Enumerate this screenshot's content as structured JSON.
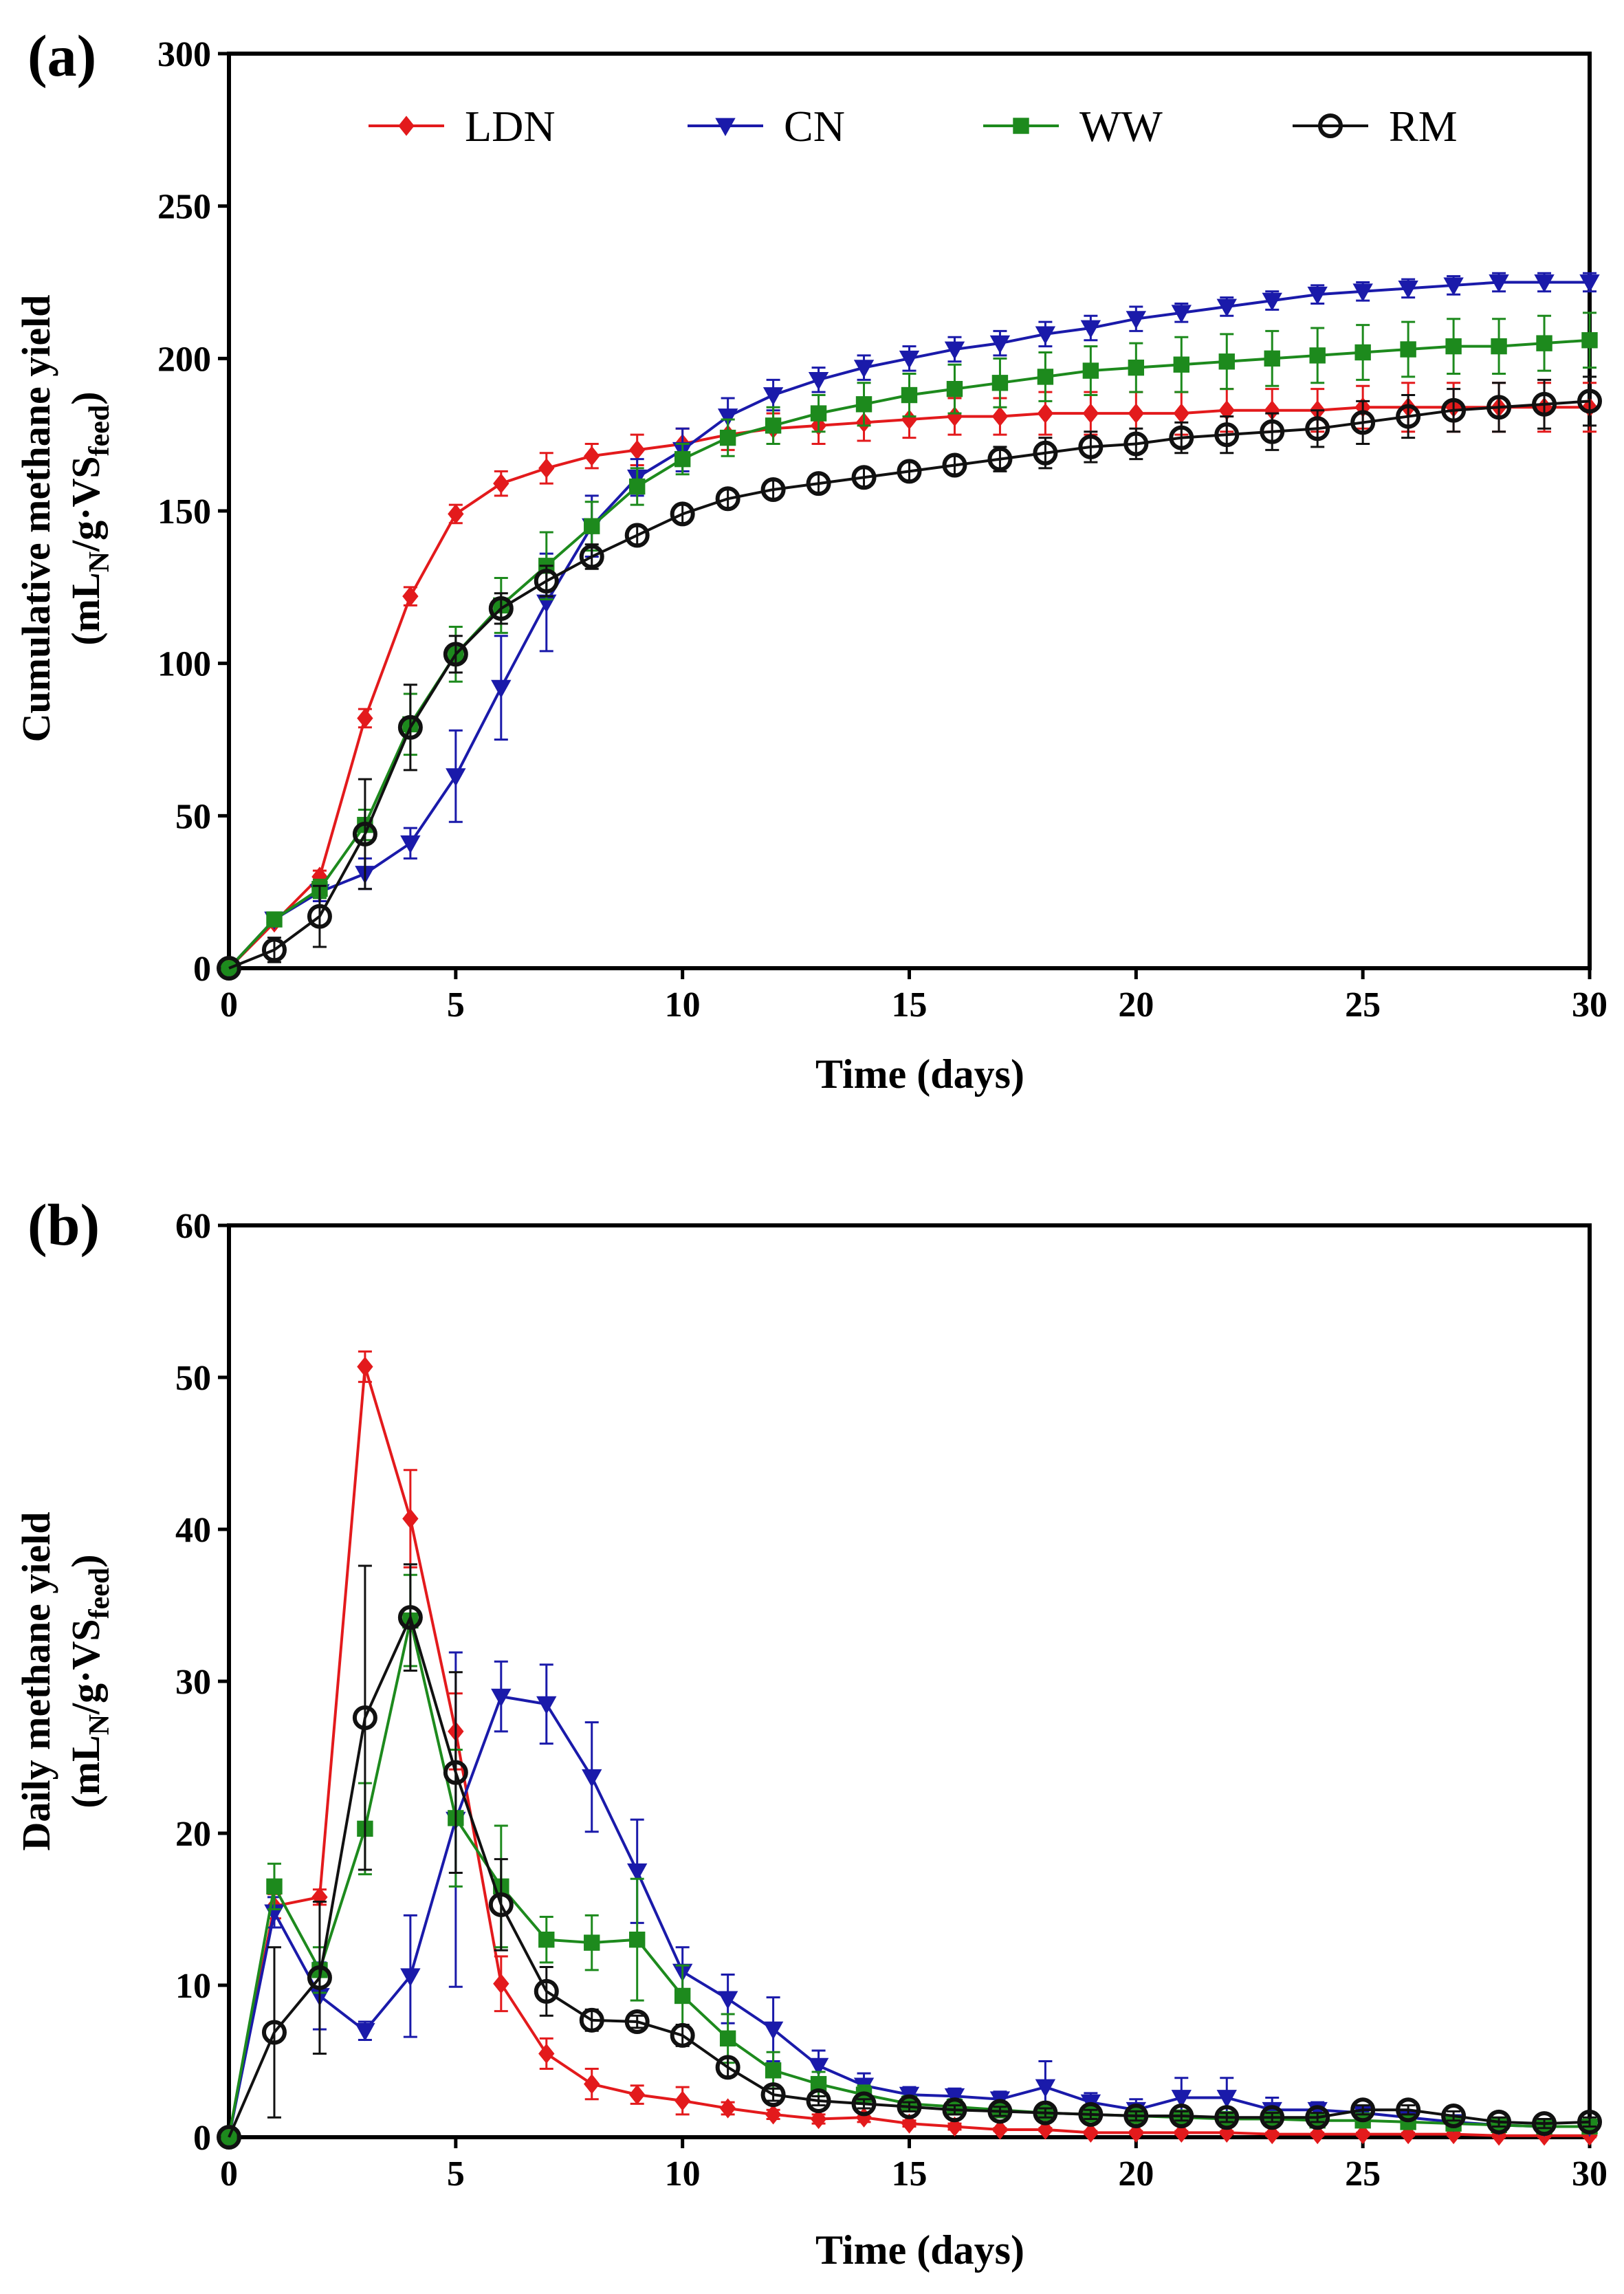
{
  "colors": {
    "LDN": "#e31a1c",
    "CN": "#1a1aaa",
    "WW": "#1d8a1d",
    "RM": "#111111"
  },
  "chart_data": [
    {
      "type": "line",
      "panel_label": "(a)",
      "xlabel": "Time (days)",
      "ylabel_line1": "Cumulative methane yield",
      "ylabel_line2_prefix": "(mL",
      "ylabel_sub1": "N",
      "ylabel_mid": "/g·VS",
      "ylabel_sub2": "feed",
      "ylabel_suffix": ")",
      "xlim": [
        0,
        30
      ],
      "ylim": [
        0,
        300
      ],
      "xticks": [
        "0",
        "5",
        "10",
        "15",
        "20",
        "25",
        "30"
      ],
      "yticks": [
        "0",
        "50",
        "100",
        "150",
        "200",
        "250",
        "300"
      ],
      "legend_position": "top",
      "x": [
        0,
        1,
        2,
        3,
        4,
        5,
        6,
        7,
        8,
        9,
        10,
        11,
        12,
        13,
        14,
        15,
        16,
        17,
        18,
        19,
        20,
        21,
        22,
        23,
        24,
        25,
        26,
        27,
        28,
        29,
        30
      ],
      "series": [
        {
          "name": "LDN",
          "marker": "diamond",
          "values": [
            0,
            15,
            30,
            82,
            122,
            149,
            159,
            164,
            168,
            170,
            172,
            175,
            177,
            178,
            179,
            180,
            181,
            181,
            182,
            182,
            182,
            182,
            183,
            183,
            183,
            184,
            184,
            184,
            184,
            184,
            184
          ],
          "errors": [
            0,
            1,
            2,
            3,
            3,
            3,
            4,
            5,
            4,
            5,
            5,
            5,
            5,
            6,
            6,
            6,
            6,
            6,
            7,
            7,
            7,
            7,
            7,
            7,
            7,
            7,
            8,
            8,
            8,
            8,
            8
          ]
        },
        {
          "name": "CN",
          "marker": "triangle-down",
          "values": [
            0,
            16,
            25,
            31,
            41,
            63,
            92,
            120,
            145,
            161,
            170,
            181,
            188,
            193,
            197,
            200,
            203,
            205,
            208,
            210,
            213,
            215,
            217,
            219,
            221,
            222,
            223,
            224,
            225,
            225,
            225
          ],
          "errors": [
            0,
            2,
            3,
            5,
            5,
            15,
            17,
            16,
            10,
            6,
            7,
            6,
            5,
            4,
            4,
            4,
            4,
            4,
            4,
            4,
            4,
            3,
            3,
            3,
            3,
            3,
            3,
            3,
            3,
            3,
            3
          ]
        },
        {
          "name": "WW",
          "marker": "square",
          "values": [
            0,
            16,
            26,
            47,
            80,
            103,
            119,
            132,
            145,
            158,
            167,
            174,
            178,
            182,
            185,
            188,
            190,
            192,
            194,
            196,
            197,
            198,
            199,
            200,
            201,
            202,
            203,
            204,
            204,
            205,
            206
          ],
          "errors": [
            0,
            2,
            3,
            5,
            10,
            9,
            9,
            11,
            8,
            6,
            5,
            6,
            6,
            6,
            7,
            7,
            8,
            8,
            8,
            8,
            8,
            9,
            9,
            9,
            9,
            9,
            9,
            9,
            9,
            9,
            9
          ]
        },
        {
          "name": "RM",
          "marker": "circle-open",
          "values": [
            0,
            6,
            17,
            44,
            79,
            103,
            118,
            127,
            135,
            142,
            149,
            154,
            157,
            159,
            161,
            163,
            165,
            167,
            169,
            171,
            172,
            174,
            175,
            176,
            177,
            179,
            181,
            183,
            184,
            185,
            186
          ],
          "errors": [
            0,
            4,
            10,
            18,
            14,
            6,
            5,
            5,
            4,
            3,
            3,
            3,
            3,
            3,
            3,
            3,
            3,
            4,
            5,
            5,
            5,
            5,
            6,
            6,
            6,
            7,
            7,
            7,
            8,
            8,
            8
          ]
        }
      ]
    },
    {
      "type": "line",
      "panel_label": "(b)",
      "xlabel": "Time (days)",
      "ylabel_line1": "Daily methane yield",
      "ylabel_line2_prefix": "(mL",
      "ylabel_sub1": "N",
      "ylabel_mid": "/g·VS",
      "ylabel_sub2": "feed",
      "ylabel_suffix": ")",
      "xlim": [
        0,
        30
      ],
      "ylim": [
        0,
        60
      ],
      "xticks": [
        "0",
        "5",
        "10",
        "15",
        "20",
        "25",
        "30"
      ],
      "yticks": [
        "0",
        "10",
        "20",
        "30",
        "40",
        "50",
        "60"
      ],
      "x": [
        0,
        1,
        2,
        3,
        4,
        5,
        6,
        7,
        8,
        9,
        10,
        11,
        12,
        13,
        14,
        15,
        16,
        17,
        18,
        19,
        20,
        21,
        22,
        23,
        24,
        25,
        26,
        27,
        28,
        29,
        30
      ],
      "series": [
        {
          "name": "LDN",
          "marker": "diamond",
          "values": [
            0,
            15.2,
            15.8,
            50.7,
            40.7,
            26.7,
            10.1,
            5.5,
            3.5,
            2.8,
            2.4,
            1.9,
            1.5,
            1.2,
            1.3,
            0.9,
            0.7,
            0.5,
            0.5,
            0.3,
            0.3,
            0.3,
            0.3,
            0.2,
            0.2,
            0.2,
            0.2,
            0.2,
            0.1,
            0.1,
            0.1
          ],
          "errors": [
            0,
            0.8,
            0.5,
            1.0,
            3.2,
            2.5,
            1.8,
            1.0,
            1.0,
            0.6,
            0.9,
            0.4,
            0.3,
            0.3,
            0.3,
            0.2,
            0.2,
            0.1,
            0.1,
            0.1,
            0.1,
            0.1,
            0.1,
            0.1,
            0.1,
            0.1,
            0.1,
            0.1,
            0.1,
            0.1,
            0.1
          ]
        },
        {
          "name": "CN",
          "marker": "triangle-down",
          "values": [
            0,
            14.8,
            9.3,
            7.0,
            10.6,
            20.9,
            29.0,
            28.5,
            23.7,
            17.5,
            10.9,
            9.1,
            7.1,
            4.7,
            3.4,
            2.8,
            2.7,
            2.5,
            3.3,
            2.3,
            1.8,
            2.6,
            2.6,
            1.8,
            1.8,
            1.6,
            1.3,
            1.0,
            0.8,
            0.7,
            0.7
          ],
          "errors": [
            0,
            1.0,
            2.2,
            0.6,
            4.0,
            11.0,
            2.3,
            2.6,
            3.6,
            3.4,
            1.6,
            1.6,
            2.1,
            1.0,
            0.8,
            0.5,
            0.5,
            0.5,
            1.7,
            0.6,
            0.7,
            1.3,
            1.3,
            0.8,
            0.5,
            0.4,
            0.4,
            0.3,
            0.3,
            0.2,
            0.2
          ]
        },
        {
          "name": "WW",
          "marker": "square",
          "values": [
            0,
            16.5,
            11.0,
            20.3,
            34.0,
            21.0,
            16.5,
            13.0,
            12.8,
            13.0,
            9.3,
            6.5,
            4.4,
            3.5,
            2.8,
            2.2,
            2.0,
            1.8,
            1.6,
            1.5,
            1.4,
            1.3,
            1.2,
            1.2,
            1.1,
            1.1,
            1.0,
            0.9,
            0.8,
            0.7,
            0.7
          ],
          "errors": [
            0,
            1.5,
            1.5,
            3.0,
            3.0,
            4.5,
            4.0,
            1.5,
            1.8,
            4.0,
            2.0,
            1.6,
            1.2,
            0.8,
            0.6,
            0.5,
            0.5,
            0.5,
            0.4,
            0.4,
            0.4,
            0.3,
            0.3,
            0.3,
            0.3,
            0.3,
            0.3,
            0.2,
            0.2,
            0.2,
            0.2
          ]
        },
        {
          "name": "RM",
          "marker": "circle-open",
          "values": [
            0,
            6.9,
            10.5,
            27.6,
            34.2,
            24.0,
            15.3,
            9.6,
            7.7,
            7.6,
            6.7,
            4.6,
            2.8,
            2.4,
            2.2,
            2.0,
            1.8,
            1.7,
            1.6,
            1.5,
            1.4,
            1.4,
            1.3,
            1.3,
            1.3,
            1.8,
            1.8,
            1.4,
            1.0,
            0.9,
            1.0
          ],
          "errors": [
            0,
            5.6,
            5.0,
            10.0,
            3.5,
            6.6,
            3.0,
            1.6,
            0.7,
            0.4,
            0.7,
            0.6,
            0.4,
            0.3,
            0.3,
            0.3,
            0.3,
            0.3,
            0.3,
            0.3,
            0.3,
            0.3,
            0.3,
            0.3,
            0.3,
            0.3,
            0.3,
            0.3,
            0.3,
            0.3,
            0.3
          ]
        }
      ]
    }
  ]
}
